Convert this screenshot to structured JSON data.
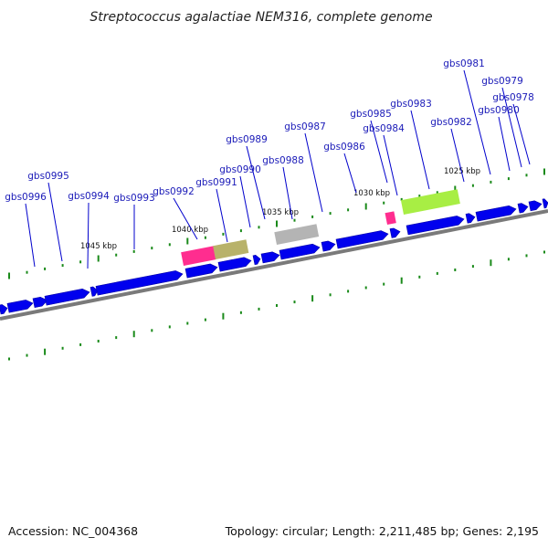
{
  "title": "Streptococcus agalactiae NEM316, complete genome",
  "footer": {
    "accession": "Accession: NC_004368",
    "summary": "Topology: circular; Length: 2,211,485 bp; Genes: 2,195"
  },
  "colors": {
    "gene_forward": "#0000ee",
    "backbone": "#7a7a7a",
    "tick": "#1a8a1a",
    "label_line": "#0000cc",
    "pink_feature": "#ff2d8f",
    "olive_feature": "#b8b26a",
    "gray_feature": "#b4b4b4",
    "lime_feature": "#a8ee44"
  },
  "tick_labels": [
    "1045 kbp",
    "1040 kbp",
    "1035 kbp",
    "1030 kbp",
    "1025 kbp"
  ],
  "gene_labels": [
    "gbs0996",
    "gbs0995",
    "gbs0994",
    "gbs0993",
    "gbs0992",
    "gbs0991",
    "gbs0990",
    "gbs0989",
    "gbs0988",
    "gbs0987",
    "gbs0986",
    "gbs0985",
    "gbs0984",
    "gbs0983",
    "gbs0982",
    "gbs0981",
    "gbs0980",
    "gbs0979",
    "gbs0978"
  ]
}
